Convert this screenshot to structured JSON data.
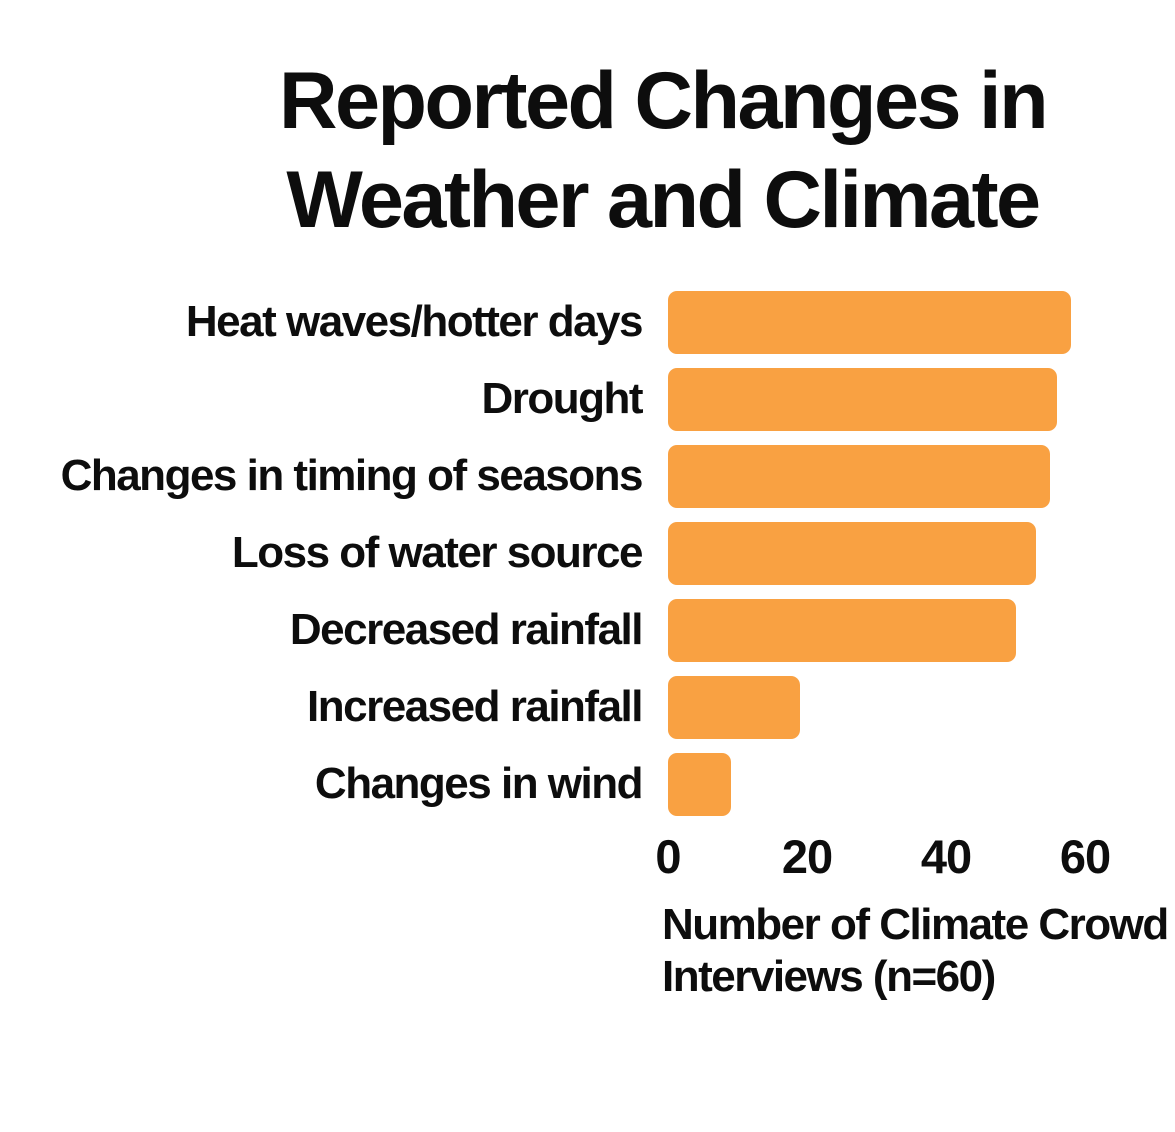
{
  "title": {
    "line1": "Reported Changes in",
    "line2": "Weather and Climate"
  },
  "xaxis_label": {
    "line1": "Number of Climate Crowd",
    "line2": "Interviews (n=60)"
  },
  "chart_data": {
    "type": "bar",
    "orientation": "horizontal",
    "title": "Reported Changes in Weather and Climate",
    "categories": [
      "Heat waves/hotter days",
      "Drought",
      "Changes in timing of seasons",
      "Loss of water source",
      "Decreased rainfall",
      "Increased rainfall",
      "Changes in wind"
    ],
    "values": [
      58,
      56,
      55,
      53,
      50,
      19,
      9
    ],
    "xlabel": "Number of Climate Crowd Interviews (n=60)",
    "xticks": [
      0,
      20,
      40,
      60
    ],
    "xlim": [
      0,
      60
    ],
    "grid": false,
    "legend": false,
    "bar_color": "#F9A142",
    "text_color": "#0d0d0d",
    "background_color": "#ffffff"
  }
}
